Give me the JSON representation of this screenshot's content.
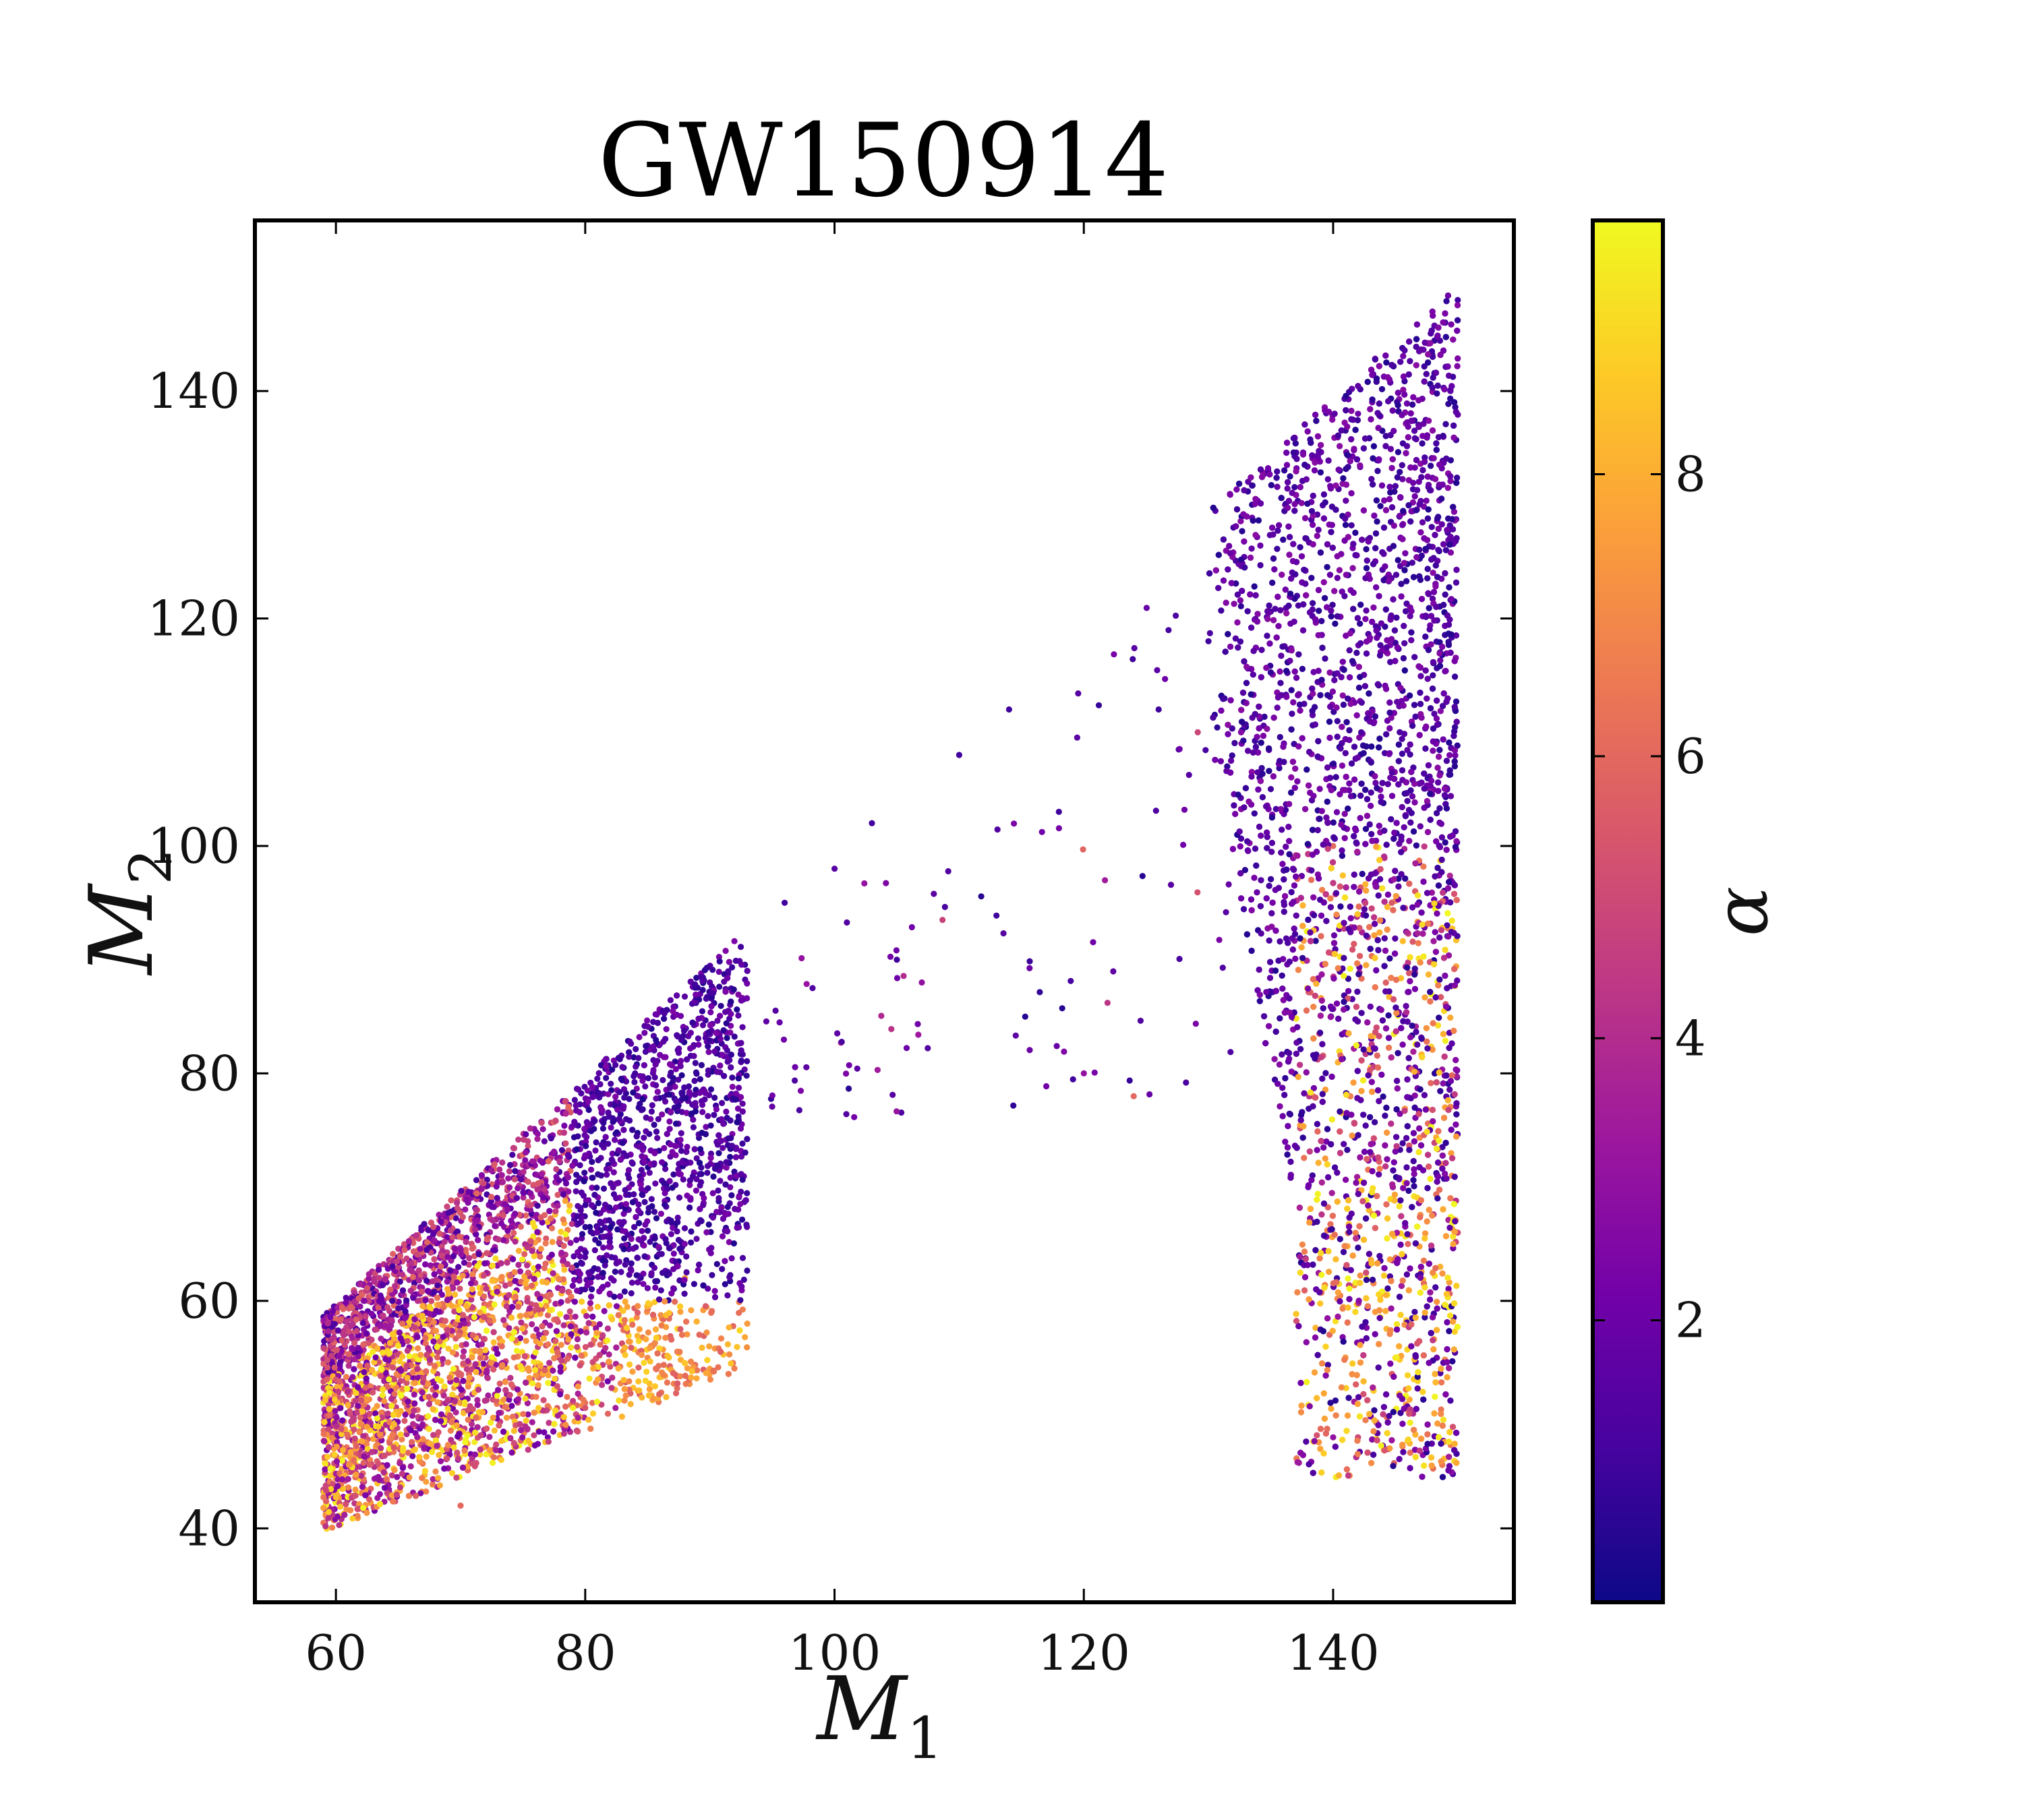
{
  "chart_data": {
    "type": "scatter",
    "title": "GW150914",
    "xlabel": {
      "symbol": "M",
      "subscript": "1"
    },
    "ylabel": {
      "symbol": "M",
      "subscript": "2"
    },
    "xlim": [
      53.5,
      154.5
    ],
    "ylim": [
      33.5,
      155
    ],
    "xticks": [
      60,
      80,
      100,
      120,
      140
    ],
    "yticks": [
      40,
      60,
      80,
      100,
      120,
      140
    ],
    "grid": false,
    "colorbar": {
      "label": "α",
      "colormap": "plasma",
      "range": [
        0,
        9.8
      ],
      "ticks": [
        2,
        4,
        6,
        8
      ],
      "stops": [
        "#0d0887",
        "#46039f",
        "#7201a8",
        "#9c179e",
        "#bd3786",
        "#d8576b",
        "#ed7953",
        "#fb9f3a",
        "#fdca26",
        "#f0f921"
      ]
    },
    "regions": [
      {
        "name": "low-mass cluster",
        "shape": "M1 ≈ 59–94, M2 ≈ 39–92, bounded above by the line M2 = M1",
        "color_value_range": [
          0.2,
          9.8
        ],
        "typical_points": [
          {
            "x": 60,
            "y": 59.5,
            "c": 4.5
          },
          {
            "x": 62,
            "y": 55,
            "c": 7.5
          },
          {
            "x": 65,
            "y": 50,
            "c": 8
          },
          {
            "x": 68,
            "y": 45,
            "c": 7
          },
          {
            "x": 70,
            "y": 42,
            "c": 6
          },
          {
            "x": 72,
            "y": 55,
            "c": 5
          },
          {
            "x": 75,
            "y": 70,
            "c": 3
          },
          {
            "x": 77,
            "y": 48,
            "c": 2
          },
          {
            "x": 78,
            "y": 65,
            "c": 1
          },
          {
            "x": 80,
            "y": 75,
            "c": 2
          },
          {
            "x": 82,
            "y": 68,
            "c": 0.5
          },
          {
            "x": 84,
            "y": 80,
            "c": 1
          },
          {
            "x": 85,
            "y": 55,
            "c": 7
          },
          {
            "x": 88,
            "y": 62,
            "c": 7.5
          },
          {
            "x": 90,
            "y": 88,
            "c": 1.5
          },
          {
            "x": 93,
            "y": 58,
            "c": 7.5
          }
        ]
      },
      {
        "name": "bridge",
        "shape": "sparse points, M1 ≈ 94–132, M2 ≈ 77–121",
        "color_value_range": [
          0.5,
          6
        ],
        "typical_points": [
          {
            "x": 96,
            "y": 95,
            "c": 1
          },
          {
            "x": 100,
            "y": 98,
            "c": 1.5
          },
          {
            "x": 103,
            "y": 102,
            "c": 1
          },
          {
            "x": 105,
            "y": 90,
            "c": 1
          },
          {
            "x": 107,
            "y": 88,
            "c": 3
          },
          {
            "x": 110,
            "y": 108,
            "c": 1
          },
          {
            "x": 114,
            "y": 112,
            "c": 1
          },
          {
            "x": 118,
            "y": 103,
            "c": 1
          },
          {
            "x": 120,
            "y": 80,
            "c": 3
          },
          {
            "x": 124,
            "y": 78,
            "c": 6
          },
          {
            "x": 126,
            "y": 112,
            "c": 1
          },
          {
            "x": 130,
            "y": 118,
            "c": 1
          }
        ]
      },
      {
        "name": "high-mass band",
        "shape": "M1 ≈ 130–150, M2 ≈ 44–149, bounded above by the line M2 = M1",
        "color_value_range": [
          0.2,
          9.8
        ],
        "typical_points": [
          {
            "x": 132,
            "y": 128,
            "c": 1
          },
          {
            "x": 135,
            "y": 105,
            "c": 1
          },
          {
            "x": 138,
            "y": 70,
            "c": 2
          },
          {
            "x": 140,
            "y": 48,
            "c": 3
          },
          {
            "x": 140,
            "y": 100,
            "c": 6
          },
          {
            "x": 142,
            "y": 138,
            "c": 2
          },
          {
            "x": 143,
            "y": 82,
            "c": 7
          },
          {
            "x": 145,
            "y": 55,
            "c": 9
          },
          {
            "x": 146,
            "y": 65,
            "c": 6
          },
          {
            "x": 148,
            "y": 115,
            "c": 1
          },
          {
            "x": 150,
            "y": 148,
            "c": 1
          },
          {
            "x": 150,
            "y": 66,
            "c": 5
          }
        ]
      }
    ]
  }
}
